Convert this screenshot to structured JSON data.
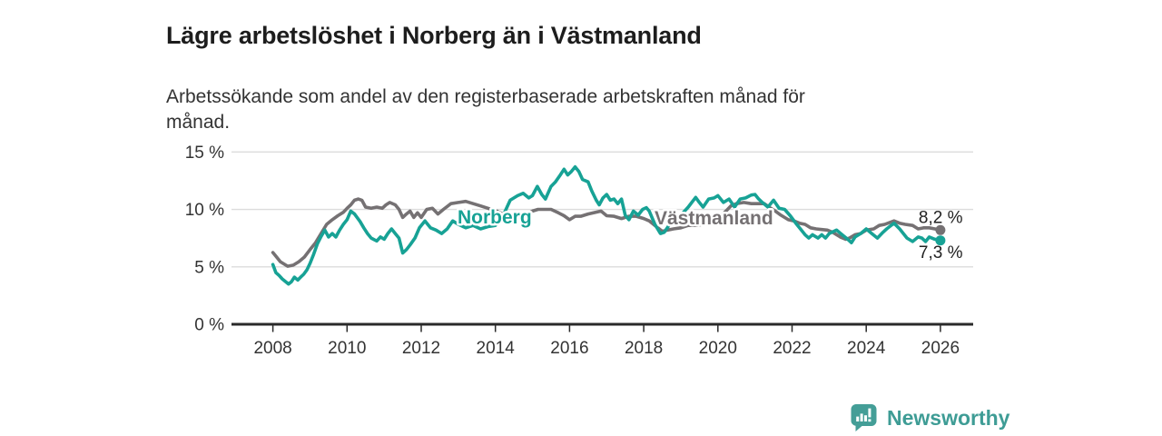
{
  "header": {
    "title": "Lägre arbetslöshet i Norberg än i Västmanland",
    "subtitle_lines": [
      "Arbetssökande som andel av den registerbaserade arbetskraften månad för",
      "månad."
    ]
  },
  "footer": {
    "brand": "Newsworthy",
    "logo_icon": "bar-chart-speech-bubble-icon"
  },
  "colors": {
    "norberg": "#17a295",
    "vastmanland": "#757173",
    "grid": "#dcdcdc",
    "axis": "#2a2a2a",
    "tick_label": "#333333",
    "end_label": "#222222",
    "brand_teal": "#3e9c95",
    "background": "#ffffff"
  },
  "chart_data": {
    "type": "line",
    "title": "Lägre arbetslöshet i Norberg än i Västmanland",
    "subtitle": "Arbetssökande som andel av den registerbaserade arbetskraften månad för månad.",
    "grid": "horizontal",
    "legend_position": "inline-labels-on-lines",
    "x_axis": {
      "ticks": [
        2008,
        2010,
        2012,
        2014,
        2016,
        2018,
        2020,
        2022,
        2024,
        2026
      ],
      "range": [
        2006.9,
        2026.9
      ]
    },
    "y_axis": {
      "ticks": [
        0,
        5,
        10,
        15
      ],
      "tick_labels": [
        "0 %",
        "5 %",
        "10 %",
        "15 %"
      ],
      "range": [
        0,
        15
      ],
      "unit": "%"
    },
    "series": [
      {
        "name": "Norberg",
        "color": "#17a295",
        "end_label": "7,3 %",
        "last_value": 7.3,
        "points": [
          [
            2008.0,
            5.2
          ],
          [
            2008.08,
            4.5
          ],
          [
            2008.17,
            4.25
          ],
          [
            2008.25,
            3.95
          ],
          [
            2008.42,
            3.5
          ],
          [
            2008.5,
            3.7
          ],
          [
            2008.58,
            4.1
          ],
          [
            2008.67,
            3.85
          ],
          [
            2008.75,
            4.1
          ],
          [
            2008.83,
            4.35
          ],
          [
            2008.92,
            4.75
          ],
          [
            2009.0,
            5.3
          ],
          [
            2009.1,
            6.1
          ],
          [
            2009.2,
            7.0
          ],
          [
            2009.3,
            7.65
          ],
          [
            2009.4,
            8.2
          ],
          [
            2009.5,
            7.6
          ],
          [
            2009.6,
            7.9
          ],
          [
            2009.7,
            7.6
          ],
          [
            2009.8,
            8.2
          ],
          [
            2009.9,
            8.7
          ],
          [
            2010.0,
            9.1
          ],
          [
            2010.1,
            9.85
          ],
          [
            2010.2,
            9.6
          ],
          [
            2010.35,
            8.95
          ],
          [
            2010.45,
            8.4
          ],
          [
            2010.55,
            7.9
          ],
          [
            2010.65,
            7.5
          ],
          [
            2010.8,
            7.25
          ],
          [
            2010.9,
            7.6
          ],
          [
            2011.0,
            7.4
          ],
          [
            2011.1,
            7.9
          ],
          [
            2011.2,
            8.3
          ],
          [
            2011.3,
            7.9
          ],
          [
            2011.4,
            7.5
          ],
          [
            2011.5,
            6.2
          ],
          [
            2011.6,
            6.5
          ],
          [
            2011.7,
            6.9
          ],
          [
            2011.83,
            7.5
          ],
          [
            2011.95,
            8.4
          ],
          [
            2012.1,
            9.0
          ],
          [
            2012.25,
            8.4
          ],
          [
            2012.4,
            8.2
          ],
          [
            2012.55,
            7.9
          ],
          [
            2012.7,
            8.3
          ],
          [
            2012.85,
            9.0
          ],
          [
            2013.0,
            8.7
          ],
          [
            2013.2,
            8.4
          ],
          [
            2013.4,
            8.6
          ],
          [
            2013.6,
            8.3
          ],
          [
            2013.8,
            8.5
          ],
          [
            2014.0,
            8.6
          ],
          [
            2014.2,
            9.4
          ],
          [
            2014.4,
            10.8
          ],
          [
            2014.6,
            11.2
          ],
          [
            2014.75,
            11.4
          ],
          [
            2014.9,
            11.0
          ],
          [
            2015.0,
            11.2
          ],
          [
            2015.13,
            12.0
          ],
          [
            2015.25,
            11.3
          ],
          [
            2015.35,
            10.9
          ],
          [
            2015.5,
            12.0
          ],
          [
            2015.62,
            12.4
          ],
          [
            2015.75,
            13.0
          ],
          [
            2015.85,
            13.5
          ],
          [
            2015.95,
            13.0
          ],
          [
            2016.05,
            13.3
          ],
          [
            2016.15,
            13.7
          ],
          [
            2016.25,
            13.3
          ],
          [
            2016.35,
            12.6
          ],
          [
            2016.5,
            12.4
          ],
          [
            2016.6,
            11.6
          ],
          [
            2016.72,
            10.8
          ],
          [
            2016.8,
            10.4
          ],
          [
            2016.9,
            11.0
          ],
          [
            2017.0,
            11.3
          ],
          [
            2017.1,
            10.8
          ],
          [
            2017.2,
            10.9
          ],
          [
            2017.3,
            10.5
          ],
          [
            2017.4,
            10.9
          ],
          [
            2017.5,
            9.5
          ],
          [
            2017.6,
            9.1
          ],
          [
            2017.72,
            9.85
          ],
          [
            2017.85,
            9.5
          ],
          [
            2017.97,
            10.0
          ],
          [
            2018.07,
            10.15
          ],
          [
            2018.15,
            9.85
          ],
          [
            2018.3,
            8.7
          ],
          [
            2018.45,
            7.9
          ],
          [
            2018.55,
            8.0
          ],
          [
            2018.7,
            8.7
          ],
          [
            2018.8,
            9.1
          ],
          [
            2019.0,
            9.5
          ],
          [
            2019.2,
            10.2
          ],
          [
            2019.4,
            11.05
          ],
          [
            2019.5,
            10.6
          ],
          [
            2019.6,
            10.2
          ],
          [
            2019.75,
            10.9
          ],
          [
            2019.9,
            11.0
          ],
          [
            2020.0,
            11.2
          ],
          [
            2020.15,
            10.6
          ],
          [
            2020.3,
            10.9
          ],
          [
            2020.45,
            10.2
          ],
          [
            2020.6,
            10.9
          ],
          [
            2020.75,
            11.0
          ],
          [
            2020.9,
            11.25
          ],
          [
            2021.0,
            11.3
          ],
          [
            2021.1,
            10.9
          ],
          [
            2021.2,
            10.6
          ],
          [
            2021.35,
            10.2
          ],
          [
            2021.5,
            10.8
          ],
          [
            2021.65,
            10.1
          ],
          [
            2021.8,
            10.0
          ],
          [
            2021.95,
            9.45
          ],
          [
            2022.1,
            8.8
          ],
          [
            2022.25,
            8.2
          ],
          [
            2022.35,
            7.8
          ],
          [
            2022.45,
            7.5
          ],
          [
            2022.55,
            7.8
          ],
          [
            2022.7,
            7.5
          ],
          [
            2022.8,
            7.8
          ],
          [
            2022.9,
            7.5
          ],
          [
            2023.0,
            7.9
          ],
          [
            2023.2,
            8.2
          ],
          [
            2023.35,
            7.8
          ],
          [
            2023.5,
            7.4
          ],
          [
            2023.6,
            7.1
          ],
          [
            2023.7,
            7.6
          ],
          [
            2023.85,
            7.9
          ],
          [
            2024.0,
            8.3
          ],
          [
            2024.15,
            7.9
          ],
          [
            2024.3,
            7.5
          ],
          [
            2024.45,
            8.0
          ],
          [
            2024.55,
            8.3
          ],
          [
            2024.75,
            8.8
          ],
          [
            2024.9,
            8.3
          ],
          [
            2025.0,
            7.9
          ],
          [
            2025.1,
            7.5
          ],
          [
            2025.25,
            7.2
          ],
          [
            2025.4,
            7.6
          ],
          [
            2025.5,
            7.5
          ],
          [
            2025.6,
            7.2
          ],
          [
            2025.7,
            7.6
          ],
          [
            2025.85,
            7.4
          ],
          [
            2026.0,
            7.3
          ]
        ]
      },
      {
        "name": "Västmanland",
        "color": "#757173",
        "end_label": "8,2 %",
        "last_value": 8.2,
        "points": [
          [
            2008.0,
            6.25
          ],
          [
            2008.1,
            5.85
          ],
          [
            2008.2,
            5.45
          ],
          [
            2008.4,
            5.05
          ],
          [
            2008.55,
            5.15
          ],
          [
            2008.7,
            5.45
          ],
          [
            2008.85,
            5.85
          ],
          [
            2009.0,
            6.5
          ],
          [
            2009.15,
            7.1
          ],
          [
            2009.3,
            7.9
          ],
          [
            2009.45,
            8.7
          ],
          [
            2009.6,
            9.1
          ],
          [
            2009.75,
            9.45
          ],
          [
            2009.9,
            9.75
          ],
          [
            2010.0,
            10.1
          ],
          [
            2010.1,
            10.4
          ],
          [
            2010.2,
            10.8
          ],
          [
            2010.3,
            10.9
          ],
          [
            2010.4,
            10.8
          ],
          [
            2010.5,
            10.2
          ],
          [
            2010.65,
            10.1
          ],
          [
            2010.8,
            10.2
          ],
          [
            2010.95,
            10.1
          ],
          [
            2011.05,
            10.4
          ],
          [
            2011.15,
            10.6
          ],
          [
            2011.3,
            10.4
          ],
          [
            2011.4,
            10.0
          ],
          [
            2011.5,
            9.3
          ],
          [
            2011.6,
            9.6
          ],
          [
            2011.7,
            9.85
          ],
          [
            2011.8,
            9.3
          ],
          [
            2011.9,
            9.7
          ],
          [
            2012.0,
            9.3
          ],
          [
            2012.15,
            10.0
          ],
          [
            2012.3,
            10.1
          ],
          [
            2012.45,
            9.6
          ],
          [
            2012.6,
            10.0
          ],
          [
            2012.8,
            10.5
          ],
          [
            2013.0,
            10.6
          ],
          [
            2013.2,
            10.7
          ],
          [
            2013.4,
            10.5
          ],
          [
            2013.6,
            10.3
          ],
          [
            2013.8,
            10.1
          ],
          [
            2014.0,
            9.9
          ],
          [
            2014.2,
            9.6
          ],
          [
            2014.4,
            9.4
          ],
          [
            2014.6,
            9.2
          ],
          [
            2014.8,
            9.5
          ],
          [
            2015.0,
            9.85
          ],
          [
            2015.15,
            10.0
          ],
          [
            2015.3,
            10.0
          ],
          [
            2015.5,
            10.0
          ],
          [
            2015.7,
            9.7
          ],
          [
            2015.85,
            9.45
          ],
          [
            2016.0,
            9.1
          ],
          [
            2016.15,
            9.4
          ],
          [
            2016.3,
            9.4
          ],
          [
            2016.5,
            9.6
          ],
          [
            2016.7,
            9.75
          ],
          [
            2016.85,
            9.85
          ],
          [
            2017.0,
            9.45
          ],
          [
            2017.2,
            9.4
          ],
          [
            2017.4,
            9.2
          ],
          [
            2017.6,
            9.4
          ],
          [
            2017.8,
            9.4
          ],
          [
            2018.0,
            9.2
          ],
          [
            2018.15,
            9.0
          ],
          [
            2018.3,
            8.6
          ],
          [
            2018.5,
            8.1
          ],
          [
            2018.65,
            8.2
          ],
          [
            2018.8,
            8.3
          ],
          [
            2019.0,
            8.4
          ],
          [
            2019.2,
            8.6
          ],
          [
            2019.4,
            8.6
          ],
          [
            2019.6,
            8.7
          ],
          [
            2019.8,
            9.0
          ],
          [
            2020.0,
            9.2
          ],
          [
            2020.2,
            9.8
          ],
          [
            2020.35,
            10.3
          ],
          [
            2020.5,
            10.5
          ],
          [
            2020.7,
            10.6
          ],
          [
            2020.9,
            10.5
          ],
          [
            2021.1,
            10.5
          ],
          [
            2021.25,
            10.5
          ],
          [
            2021.4,
            10.15
          ],
          [
            2021.55,
            9.85
          ],
          [
            2021.7,
            9.5
          ],
          [
            2021.9,
            9.1
          ],
          [
            2022.05,
            9.0
          ],
          [
            2022.2,
            8.8
          ],
          [
            2022.35,
            8.7
          ],
          [
            2022.5,
            8.4
          ],
          [
            2022.65,
            8.3
          ],
          [
            2022.8,
            8.25
          ],
          [
            2022.95,
            8.2
          ],
          [
            2023.1,
            8.0
          ],
          [
            2023.3,
            7.6
          ],
          [
            2023.45,
            7.4
          ],
          [
            2023.55,
            7.5
          ],
          [
            2023.7,
            7.8
          ],
          [
            2023.85,
            7.9
          ],
          [
            2024.0,
            8.2
          ],
          [
            2024.2,
            8.3
          ],
          [
            2024.35,
            8.6
          ],
          [
            2024.5,
            8.7
          ],
          [
            2024.75,
            9.0
          ],
          [
            2024.9,
            8.8
          ],
          [
            2025.05,
            8.7
          ],
          [
            2025.25,
            8.6
          ],
          [
            2025.4,
            8.3
          ],
          [
            2025.55,
            8.4
          ],
          [
            2025.7,
            8.4
          ],
          [
            2025.85,
            8.3
          ],
          [
            2026.0,
            8.2
          ]
        ]
      }
    ]
  }
}
